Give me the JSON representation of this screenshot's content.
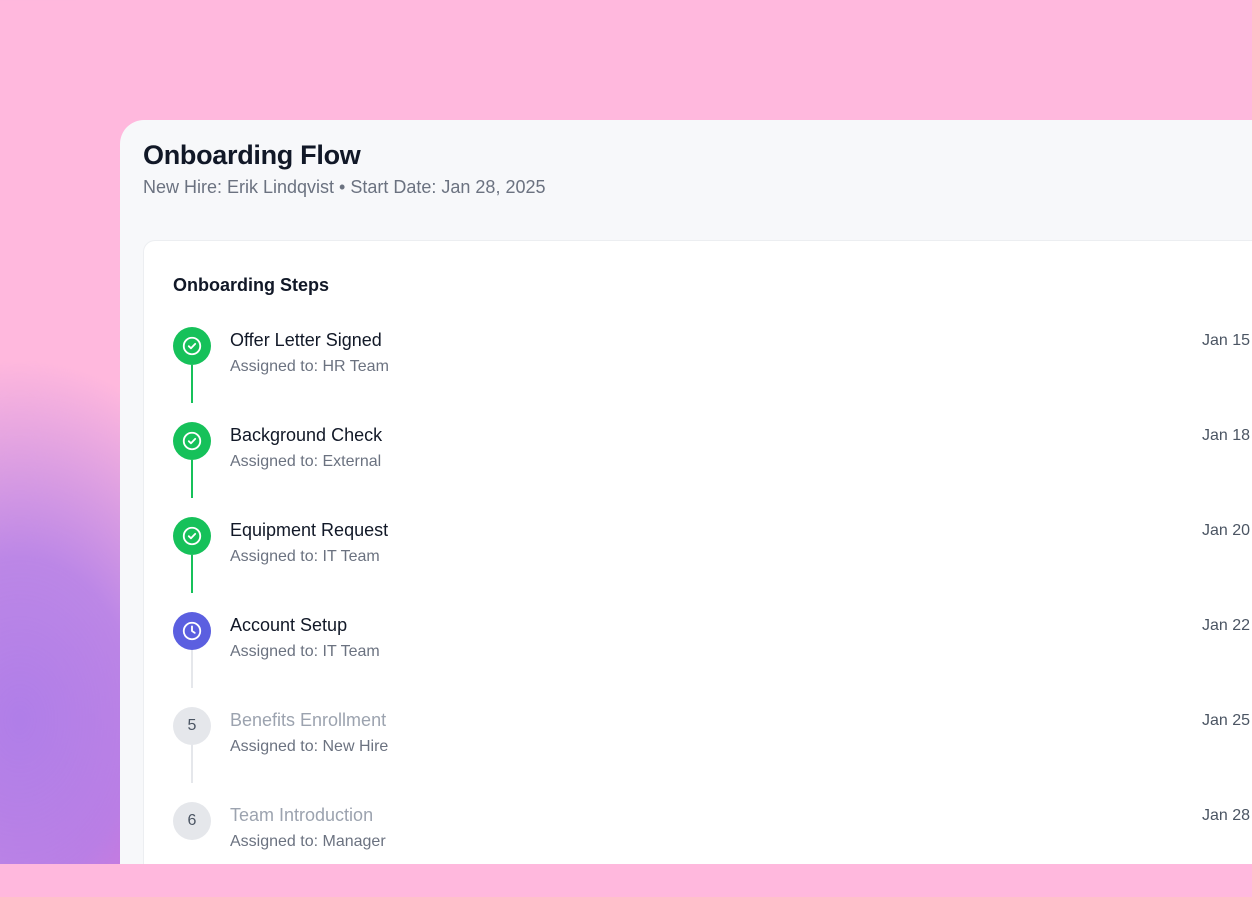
{
  "header": {
    "title": "Onboarding Flow",
    "subtitle": "New Hire: Erik Lindqvist • Start Date: Jan 28, 2025"
  },
  "card": {
    "title": "Onboarding Steps"
  },
  "colors": {
    "done": "#16c15a",
    "current": "#5b5fe0",
    "pending": "#e5e7eb"
  },
  "steps": [
    {
      "title": "Offer Letter Signed",
      "assignee": "Assigned to: HR Team",
      "date": "Jan 15",
      "status": "done",
      "icon": "check-circle-icon"
    },
    {
      "title": "Background Check",
      "assignee": "Assigned to: External",
      "date": "Jan 18",
      "status": "done",
      "icon": "check-circle-icon"
    },
    {
      "title": "Equipment Request",
      "assignee": "Assigned to: IT Team",
      "date": "Jan 20",
      "status": "done",
      "icon": "check-circle-icon"
    },
    {
      "title": "Account Setup",
      "assignee": "Assigned to: IT Team",
      "date": "Jan 22",
      "status": "current",
      "icon": "clock-icon"
    },
    {
      "title": "Benefits Enrollment",
      "assignee": "Assigned to: New Hire",
      "date": "Jan 25",
      "status": "pending",
      "number": "5"
    },
    {
      "title": "Team Introduction",
      "assignee": "Assigned to: Manager",
      "date": "Jan 28",
      "status": "pending",
      "number": "6"
    }
  ]
}
